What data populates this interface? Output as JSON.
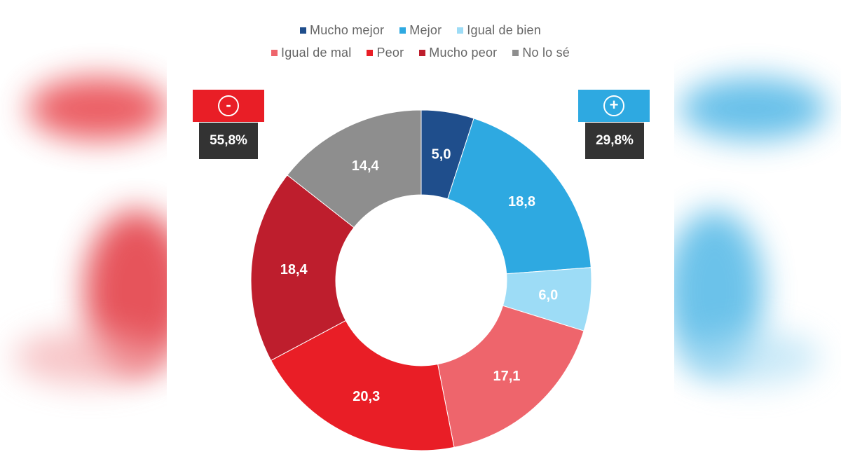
{
  "chart_data": {
    "type": "pie",
    "variant": "donut",
    "categories": [
      "Mucho mejor",
      "Mejor",
      "Igual de bien",
      "Igual de mal",
      "Peor",
      "Mucho peor",
      "No lo sé"
    ],
    "values": [
      5.0,
      18.8,
      6.0,
      17.1,
      20.3,
      18.4,
      14.4
    ],
    "value_labels": [
      "5,0",
      "18,8",
      "6,0",
      "17,1",
      "20,3",
      "18,4",
      "14,4"
    ],
    "colors": [
      "#1f4e8c",
      "#2ea9e1",
      "#9ddcf6",
      "#ee656c",
      "#e91e26",
      "#be1e2d",
      "#8e8e8e"
    ],
    "legend_position": "top",
    "title": ""
  },
  "legend": {
    "row1": [
      {
        "label": "Mucho mejor",
        "color": "#1f4e8c"
      },
      {
        "label": "Mejor",
        "color": "#2ea9e1"
      },
      {
        "label": "Igual de bien",
        "color": "#9ddcf6"
      }
    ],
    "row2": [
      {
        "label": "Igual de mal",
        "color": "#ee656c"
      },
      {
        "label": "Peor",
        "color": "#e91e26"
      },
      {
        "label": "Mucho peor",
        "color": "#be1e2d"
      },
      {
        "label": "No lo sé",
        "color": "#8e8e8e"
      }
    ]
  },
  "badges": {
    "negative": {
      "symbol": "-",
      "value": "55,8%",
      "color": "#e91e26"
    },
    "positive": {
      "symbol": "+",
      "value": "29,8%",
      "color": "#2ea9e1"
    }
  }
}
